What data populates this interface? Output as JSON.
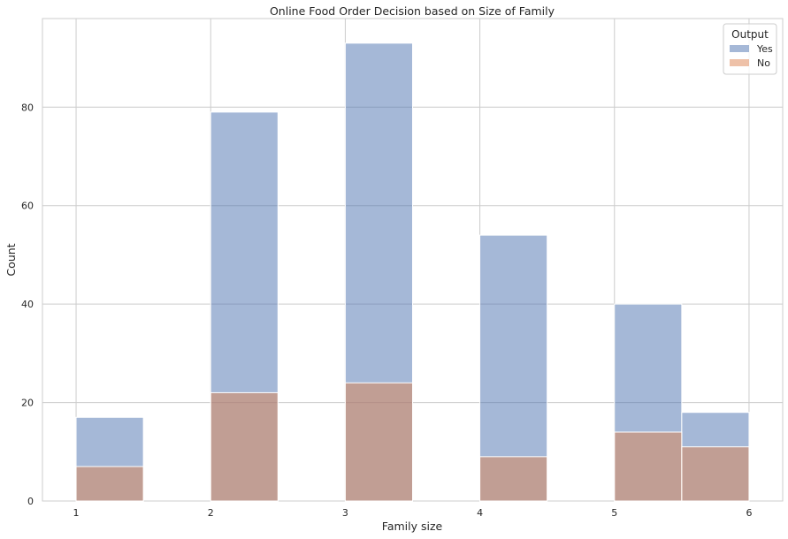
{
  "chart_data": {
    "type": "bar",
    "title": "Online Food Order Decision based on Size of Family",
    "xlabel": "Family size",
    "ylabel": "Count",
    "xlim": [
      0.75,
      6.25
    ],
    "ylim": [
      0,
      98
    ],
    "xticks": [
      1,
      2,
      3,
      4,
      5,
      6
    ],
    "yticks": [
      0,
      20,
      40,
      60,
      80
    ],
    "grid": true,
    "legend": {
      "title": "Output",
      "placement": "top-right"
    },
    "bin_edges": [
      1.0,
      1.5,
      2.0,
      2.5,
      3.0,
      3.5,
      4.0,
      4.5,
      5.0,
      5.5,
      6.0
    ],
    "series": [
      {
        "name": "Yes",
        "color": "#4c72b0",
        "values": [
          17,
          0,
          79,
          0,
          93,
          0,
          54,
          0,
          40,
          18
        ]
      },
      {
        "name": "No",
        "color": "#dd8452",
        "values": [
          7,
          0,
          22,
          0,
          24,
          0,
          9,
          0,
          14,
          11
        ]
      }
    ]
  }
}
